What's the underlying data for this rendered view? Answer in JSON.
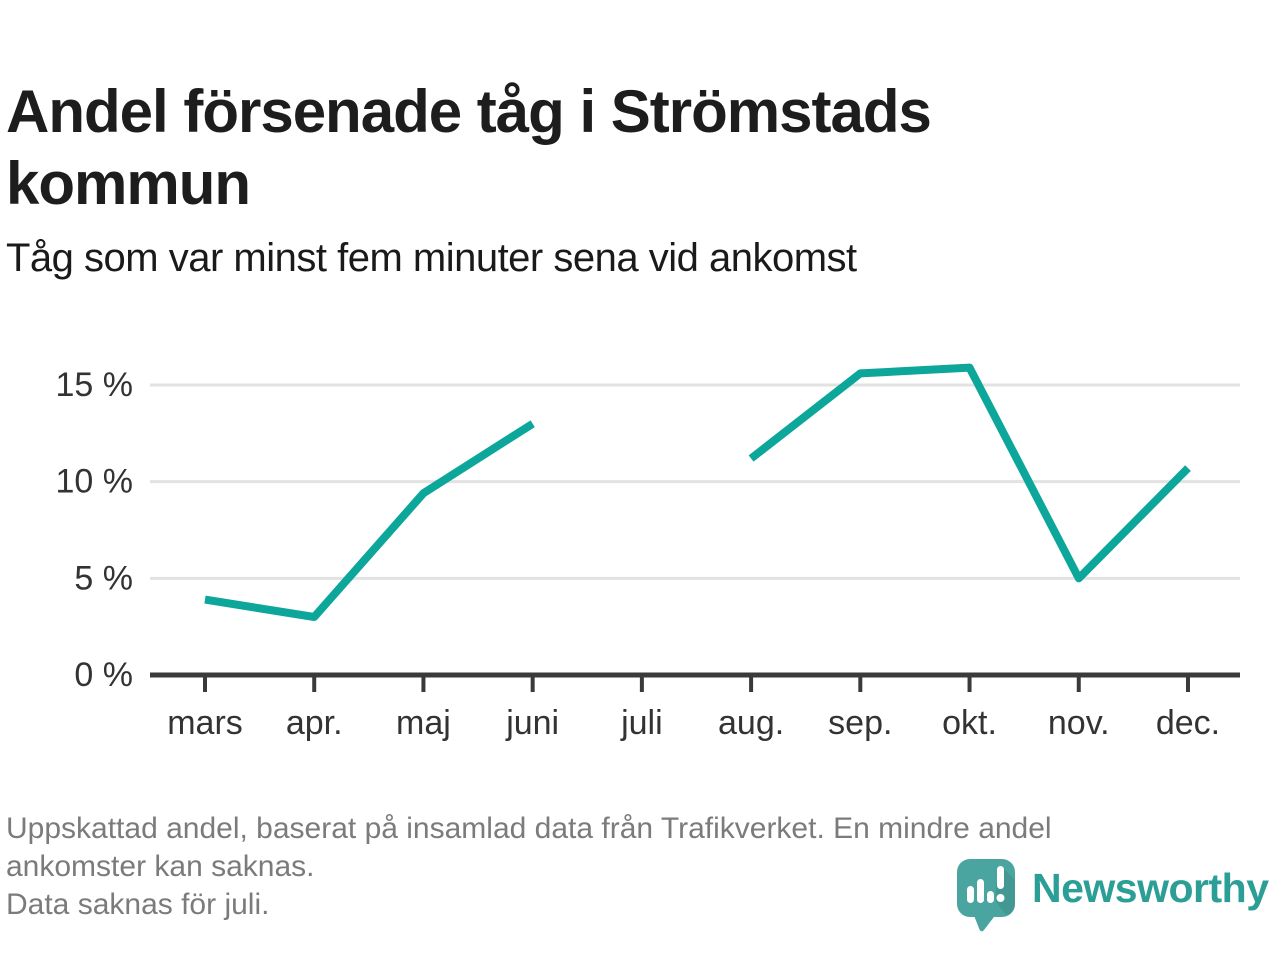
{
  "chart_data": {
    "type": "line",
    "title": "Andel försenade tåg i Strömstads kommun",
    "subtitle": "Tåg som var minst fem minuter sena vid ankomst",
    "categories": [
      "mars",
      "apr.",
      "maj",
      "juni",
      "juli",
      "aug.",
      "sep.",
      "okt.",
      "nov.",
      "dec."
    ],
    "series": [
      {
        "name": "Andel försenade tåg (minst fem minuter sena vid ankomst)",
        "values": [
          3.9,
          3.0,
          9.4,
          13.0,
          null,
          11.2,
          15.6,
          15.9,
          5.0,
          10.7
        ]
      }
    ],
    "unit": "%",
    "ylim": [
      0,
      17
    ],
    "yticks": [
      {
        "value": 0,
        "label": "0 %"
      },
      {
        "value": 5,
        "label": "5 %"
      },
      {
        "value": 10,
        "label": "10 %"
      },
      {
        "value": 15,
        "label": "15 %"
      }
    ],
    "grid": true,
    "legend_position": "none",
    "missing_categories": [
      "juli"
    ],
    "colors": {
      "line": "#0da69a",
      "axis": "#3a3a3a",
      "gridline": "#e2e2e2",
      "tick_label": "#333333"
    }
  },
  "footer": {
    "lines": [
      "Uppskattad andel, baserat på insamlad data från Trafikverket. En mindre andel",
      "ankomster kan saknas.",
      "Data saknas för juli."
    ]
  },
  "logo": {
    "text": "Newsworthy",
    "color": "#2b9e96",
    "icon": "newsworthy-speech-bubble-bar-chart-icon",
    "icon_color": "#4aa5a1"
  }
}
